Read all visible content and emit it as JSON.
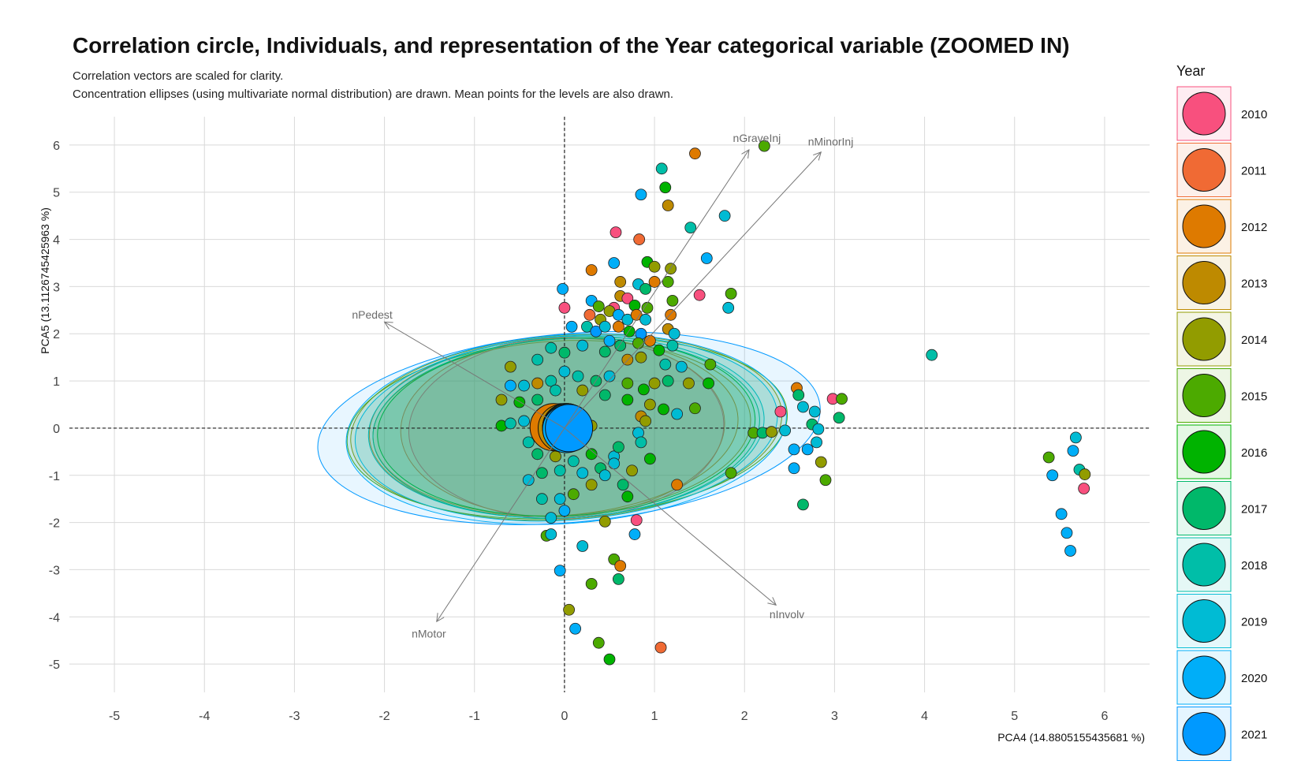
{
  "title": "Correlation circle, Individuals, and representation of the Year categorical variable (ZOOMED IN)",
  "subtitle_lines": [
    "Correlation vectors are scaled for clarity.",
    "Concentration ellipses (using multivariate normal distribution) are drawn. Mean points for the levels are also drawn."
  ],
  "chart_data": {
    "type": "scatter",
    "xlabel": "PCA4 (14.8805155435681 %)",
    "ylabel": "PCA5 (13.1126745425963 %)",
    "xlim": [
      -5.5,
      6.5
    ],
    "ylim": [
      -5.6,
      6.6
    ],
    "x_ticks": [
      -5,
      -4,
      -3,
      -2,
      -1,
      0,
      1,
      2,
      3,
      4,
      5,
      6
    ],
    "y_ticks": [
      -5,
      -4,
      -3,
      -2,
      -1,
      0,
      1,
      2,
      3,
      4,
      5,
      6
    ],
    "grid": true,
    "reference_lines": {
      "x": 0,
      "y": 0
    },
    "legend": {
      "title": "Year",
      "position": "right"
    },
    "years": [
      {
        "year": "2010",
        "color": "#F8507E",
        "mean": [
          0.02,
          0.0
        ],
        "ellipse": {
          "rx": 1.75,
          "ry": 1.92,
          "angle": -2
        }
      },
      {
        "year": "2011",
        "color": "#F06A34",
        "mean": [
          -0.02,
          0.02
        ],
        "ellipse": {
          "rx": 1.8,
          "ry": 1.9,
          "angle": -2
        }
      },
      {
        "year": "2012",
        "color": "#DE7A00",
        "mean": [
          -0.12,
          0.02
        ],
        "ellipse": {
          "rx": 2.05,
          "ry": 1.88,
          "angle": -3
        }
      },
      {
        "year": "2013",
        "color": "#BE8A00",
        "mean": [
          -0.03,
          0.0
        ],
        "ellipse": {
          "rx": 2.1,
          "ry": 1.85,
          "angle": -3
        }
      },
      {
        "year": "2014",
        "color": "#929C00",
        "mean": [
          0.02,
          0.02
        ],
        "ellipse": {
          "rx": 2.4,
          "ry": 1.95,
          "angle": -4
        }
      },
      {
        "year": "2015",
        "color": "#4CAA00",
        "mean": [
          0.03,
          0.0
        ],
        "ellipse": {
          "rx": 2.45,
          "ry": 1.9,
          "angle": -4
        }
      },
      {
        "year": "2016",
        "color": "#00B300",
        "mean": [
          0.02,
          0.02
        ],
        "ellipse": {
          "rx": 2.1,
          "ry": 1.88,
          "angle": -3
        }
      },
      {
        "year": "2017",
        "color": "#00B86A",
        "mean": [
          0.02,
          0.0
        ],
        "ellipse": {
          "rx": 2.15,
          "ry": 1.9,
          "angle": -3
        }
      },
      {
        "year": "2018",
        "color": "#00BEA8",
        "mean": [
          0.02,
          0.02
        ],
        "ellipse": {
          "rx": 2.2,
          "ry": 1.92,
          "angle": -3
        }
      },
      {
        "year": "2019",
        "color": "#00BBD4",
        "mean": [
          0.02,
          0.0
        ],
        "ellipse": {
          "rx": 2.35,
          "ry": 1.95,
          "angle": -4
        }
      },
      {
        "year": "2020",
        "color": "#00AEF8",
        "mean": [
          0.02,
          -0.02
        ],
        "ellipse": {
          "rx": 2.45,
          "ry": 2.0,
          "angle": -4
        }
      },
      {
        "year": "2021",
        "color": "#0099FF",
        "mean": [
          0.05,
          0.0
        ],
        "ellipse": {
          "rx": 2.8,
          "ry": 2.0,
          "angle": -5
        }
      }
    ],
    "vectors": [
      {
        "label": "nGraveInj",
        "x": 2.05,
        "y": 5.9
      },
      {
        "label": "nMinorInj",
        "x": 2.85,
        "y": 5.85
      },
      {
        "label": "nPedest",
        "x": -2.0,
        "y": 2.25
      },
      {
        "label": "nMotor",
        "x": -1.42,
        "y": -4.1
      },
      {
        "label": "nInvolv",
        "x": 2.35,
        "y": -3.75
      }
    ],
    "points": [
      [
        2.22,
        5.98,
        5
      ],
      [
        1.45,
        5.82,
        2
      ],
      [
        1.08,
        5.5,
        8
      ],
      [
        1.12,
        5.1,
        6
      ],
      [
        0.85,
        4.95,
        10
      ],
      [
        1.15,
        4.72,
        3
      ],
      [
        1.4,
        4.25,
        8
      ],
      [
        1.78,
        4.5,
        9
      ],
      [
        0.57,
        4.15,
        0
      ],
      [
        0.83,
        4.0,
        1
      ],
      [
        1.58,
        3.6,
        10
      ],
      [
        0.3,
        3.35,
        2
      ],
      [
        0.92,
        3.52,
        6
      ],
      [
        1.0,
        3.42,
        4
      ],
      [
        1.18,
        3.38,
        4
      ],
      [
        0.55,
        3.5,
        10
      ],
      [
        -0.02,
        2.95,
        10
      ],
      [
        0.62,
        3.1,
        3
      ],
      [
        0.82,
        3.05,
        9
      ],
      [
        0.9,
        2.95,
        7
      ],
      [
        1.0,
        3.1,
        2
      ],
      [
        1.15,
        3.1,
        5
      ],
      [
        1.5,
        2.82,
        0
      ],
      [
        1.85,
        2.85,
        5
      ],
      [
        1.82,
        2.55,
        9
      ],
      [
        0.0,
        2.55,
        0
      ],
      [
        0.3,
        2.7,
        10
      ],
      [
        0.38,
        2.58,
        5
      ],
      [
        0.55,
        2.55,
        0
      ],
      [
        0.62,
        2.8,
        3
      ],
      [
        0.7,
        2.75,
        0
      ],
      [
        0.78,
        2.6,
        6
      ],
      [
        0.92,
        2.55,
        5
      ],
      [
        1.18,
        2.4,
        2
      ],
      [
        1.2,
        2.7,
        5
      ],
      [
        0.28,
        2.4,
        1
      ],
      [
        0.4,
        2.3,
        4
      ],
      [
        0.5,
        2.48,
        4
      ],
      [
        0.6,
        2.4,
        10
      ],
      [
        0.7,
        2.3,
        9
      ],
      [
        0.8,
        2.4,
        2
      ],
      [
        0.9,
        2.3,
        9
      ],
      [
        0.08,
        2.15,
        10
      ],
      [
        0.25,
        2.15,
        8
      ],
      [
        0.35,
        2.05,
        11
      ],
      [
        0.45,
        2.15,
        9
      ],
      [
        0.6,
        2.15,
        2
      ],
      [
        0.72,
        2.05,
        6
      ],
      [
        0.85,
        2.0,
        11
      ],
      [
        1.15,
        2.1,
        3
      ],
      [
        1.22,
        2.0,
        9
      ],
      [
        0.95,
        1.85,
        2
      ],
      [
        0.82,
        1.8,
        5
      ],
      [
        1.2,
        1.75,
        8
      ],
      [
        1.62,
        1.35,
        5
      ],
      [
        0.5,
        1.85,
        10
      ],
      [
        0.62,
        1.75,
        7
      ],
      [
        -0.6,
        1.3,
        4
      ],
      [
        -0.3,
        1.45,
        8
      ],
      [
        -0.15,
        1.7,
        8
      ],
      [
        0.0,
        1.6,
        7
      ],
      [
        0.2,
        1.75,
        9
      ],
      [
        0.45,
        1.62,
        7
      ],
      [
        0.7,
        1.45,
        3
      ],
      [
        0.85,
        1.5,
        4
      ],
      [
        1.05,
        1.65,
        6
      ],
      [
        1.12,
        1.35,
        8
      ],
      [
        1.3,
        1.3,
        9
      ],
      [
        1.15,
        1.0,
        7
      ],
      [
        1.0,
        0.95,
        4
      ],
      [
        1.38,
        0.95,
        4
      ],
      [
        0.88,
        0.82,
        6
      ],
      [
        0.7,
        0.95,
        5
      ],
      [
        0.5,
        1.1,
        9
      ],
      [
        0.35,
        1.0,
        7
      ],
      [
        0.15,
        1.1,
        8
      ],
      [
        0.0,
        1.2,
        9
      ],
      [
        -0.15,
        1.0,
        8
      ],
      [
        -0.3,
        0.95,
        3
      ],
      [
        -0.45,
        0.9,
        9
      ],
      [
        -0.6,
        0.9,
        10
      ],
      [
        -0.7,
        0.6,
        4
      ],
      [
        -0.5,
        0.55,
        6
      ],
      [
        -0.3,
        0.6,
        7
      ],
      [
        -0.1,
        0.8,
        8
      ],
      [
        0.2,
        0.8,
        4
      ],
      [
        0.45,
        0.7,
        7
      ],
      [
        0.7,
        0.6,
        6
      ],
      [
        0.95,
        0.5,
        4
      ],
      [
        1.1,
        0.4,
        6
      ],
      [
        1.25,
        0.3,
        9
      ],
      [
        1.45,
        0.42,
        5
      ],
      [
        0.85,
        0.25,
        3
      ],
      [
        0.9,
        0.15,
        4
      ],
      [
        -0.7,
        0.05,
        6
      ],
      [
        -0.6,
        0.1,
        8
      ],
      [
        -0.45,
        0.15,
        9
      ],
      [
        -0.3,
        0.1,
        7
      ],
      [
        0.3,
        0.05,
        4
      ],
      [
        0.82,
        -0.1,
        9
      ],
      [
        -0.4,
        -0.3,
        8
      ],
      [
        -0.3,
        -0.55,
        7
      ],
      [
        -0.1,
        -0.6,
        4
      ],
      [
        0.1,
        -0.7,
        8
      ],
      [
        0.3,
        -0.55,
        6
      ],
      [
        0.55,
        -0.6,
        9
      ],
      [
        0.6,
        -0.4,
        7
      ],
      [
        0.85,
        -0.3,
        8
      ],
      [
        0.95,
        -0.65,
        6
      ],
      [
        0.75,
        -0.9,
        4
      ],
      [
        0.55,
        -0.75,
        9
      ],
      [
        0.4,
        -0.85,
        7
      ],
      [
        0.2,
        -0.95,
        9
      ],
      [
        -0.05,
        -0.9,
        8
      ],
      [
        -0.25,
        -0.95,
        7
      ],
      [
        -0.4,
        -1.1,
        9
      ],
      [
        -0.25,
        -1.5,
        8
      ],
      [
        -0.05,
        -1.5,
        9
      ],
      [
        0.1,
        -1.4,
        5
      ],
      [
        0.3,
        -1.2,
        4
      ],
      [
        0.45,
        -1.0,
        9
      ],
      [
        0.65,
        -1.2,
        7
      ],
      [
        0.7,
        -1.45,
        6
      ],
      [
        1.25,
        -1.2,
        2
      ],
      [
        -0.15,
        -1.9,
        9
      ],
      [
        0.0,
        -1.75,
        10
      ],
      [
        0.45,
        -1.98,
        4
      ],
      [
        0.8,
        -1.95,
        0
      ],
      [
        0.78,
        -2.25,
        10
      ],
      [
        -0.2,
        -2.28,
        5
      ],
      [
        -0.15,
        -2.25,
        9
      ],
      [
        0.2,
        -2.5,
        9
      ],
      [
        0.55,
        -2.78,
        5
      ],
      [
        0.62,
        -2.92,
        2
      ],
      [
        0.6,
        -3.2,
        7
      ],
      [
        -0.05,
        -3.02,
        10
      ],
      [
        0.3,
        -3.3,
        5
      ],
      [
        0.05,
        -3.85,
        4
      ],
      [
        0.12,
        -4.25,
        10
      ],
      [
        0.38,
        -4.55,
        5
      ],
      [
        0.5,
        -4.9,
        6
      ],
      [
        1.07,
        -4.65,
        1
      ],
      [
        1.6,
        0.95,
        6
      ],
      [
        1.85,
        -0.95,
        5
      ],
      [
        2.1,
        -0.1,
        5
      ],
      [
        2.2,
        -0.1,
        7
      ],
      [
        2.3,
        -0.08,
        4
      ],
      [
        2.4,
        0.35,
        0
      ],
      [
        2.45,
        -0.05,
        9
      ],
      [
        2.55,
        -0.45,
        10
      ],
      [
        2.58,
        0.85,
        2
      ],
      [
        2.6,
        0.7,
        7
      ],
      [
        2.65,
        0.45,
        9
      ],
      [
        2.65,
        -1.62,
        7
      ],
      [
        2.7,
        -0.45,
        10
      ],
      [
        2.75,
        0.08,
        7
      ],
      [
        2.78,
        0.35,
        9
      ],
      [
        2.8,
        -0.3,
        9
      ],
      [
        2.82,
        -0.02,
        9
      ],
      [
        2.85,
        -0.72,
        4
      ],
      [
        2.9,
        -1.1,
        5
      ],
      [
        2.98,
        0.62,
        0
      ],
      [
        3.05,
        0.22,
        7
      ],
      [
        3.08,
        0.62,
        5
      ],
      [
        4.08,
        1.55,
        8
      ],
      [
        5.38,
        -0.62,
        5
      ],
      [
        5.42,
        -1.0,
        10
      ],
      [
        5.52,
        -1.82,
        10
      ],
      [
        5.58,
        -2.22,
        10
      ],
      [
        5.62,
        -2.6,
        10
      ],
      [
        5.65,
        -0.48,
        10
      ],
      [
        5.68,
        -0.2,
        9
      ],
      [
        5.72,
        -0.88,
        8
      ],
      [
        5.78,
        -0.98,
        4
      ],
      [
        5.77,
        -1.28,
        0
      ],
      [
        2.55,
        -0.85,
        10
      ]
    ]
  }
}
